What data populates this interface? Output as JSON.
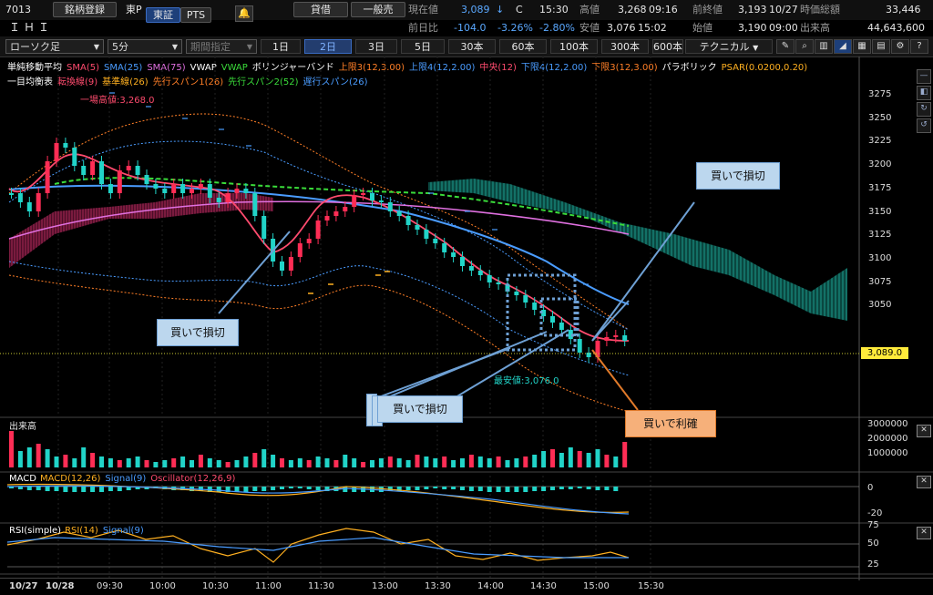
{
  "header": {
    "code": "7013",
    "watch_btn": "銘柄登録",
    "market": "東P",
    "tse_tab": "東証",
    "pts_tab": "PTS",
    "lending_btn": "貸借",
    "general_btn": "一般売",
    "name": "ＩＨＩ",
    "current_label": "現在値",
    "current_value": "3,089",
    "current_arrow": "↓",
    "c_flag": "C",
    "current_time": "15:30",
    "high_label": "高値",
    "high_value": "3,268",
    "high_time": "09:16",
    "prev_close_label": "前終値",
    "prev_close_value": "3,193",
    "prev_close_date": "10/27",
    "mcap_label": "時価総額",
    "mcap_value": "33,446",
    "change_label": "前日比",
    "change_value": "-104.0",
    "change_pct": "-3.26%",
    "change_pct2": "-2.80%",
    "low_label": "安値",
    "low_value": "3,076",
    "low_time": "15:02",
    "open_label": "始値",
    "open_value": "3,190",
    "open_time": "09:00",
    "volume_label": "出来高",
    "volume_value": "44,643,600"
  },
  "toolbar": {
    "chart_type": "ローソク足",
    "interval": "5分",
    "period_spec": "期間指定",
    "periods": [
      "1日",
      "2日",
      "3日",
      "5日",
      "30本",
      "60本",
      "100本",
      "300本",
      "600本"
    ],
    "active_period": "2日",
    "technical_btn": "テクニカル"
  },
  "legend": {
    "line1": [
      {
        "text": "単純移動平均",
        "color": "#ffffff"
      },
      {
        "text": "SMA(5)",
        "color": "#ff4b6e"
      },
      {
        "text": "SMA(25)",
        "color": "#4a9cff"
      },
      {
        "text": "SMA(75)",
        "color": "#e070e0"
      },
      {
        "text": "VWAP",
        "color": "#ffffff"
      },
      {
        "text": "VWAP",
        "color": "#3adc3a"
      },
      {
        "text": "ボリンジャーバンド",
        "color": "#ffffff"
      },
      {
        "text": "上限3(12,3.00)",
        "color": "#ff7f27"
      },
      {
        "text": "上限4(12,2.00)",
        "color": "#4a9cff"
      },
      {
        "text": "中央(12)",
        "color": "#ff4b6e"
      },
      {
        "text": "下限4(12,2.00)",
        "color": "#4a9cff"
      },
      {
        "text": "下限3(12,3.00)",
        "color": "#ff7f27"
      },
      {
        "text": "パラボリック",
        "color": "#ffffff"
      },
      {
        "text": "PSAR(0.0200,0.20)",
        "color": "#ffb020"
      }
    ],
    "line2": [
      {
        "text": "一目均衡表",
        "color": "#ffffff"
      },
      {
        "text": "転換線(9)",
        "color": "#ff4b6e"
      },
      {
        "text": "基準線(26)",
        "color": "#ffb020"
      },
      {
        "text": "先行スパン1(26)",
        "color": "#ff7f27"
      },
      {
        "text": "先行スパン2(52)",
        "color": "#3adc3a"
      },
      {
        "text": "遅行スパン(26)",
        "color": "#4a9cff"
      }
    ]
  },
  "price_axis": [
    "3275",
    "3250",
    "3225",
    "3200",
    "3175",
    "3150",
    "3125",
    "3100",
    "3075",
    "3050"
  ],
  "last_price_tag": "3,089.0",
  "annotations": {
    "high_marker": "一場高値:3,268.0",
    "low_marker": "最安値:3,076.0",
    "callout1": "買いで損切",
    "callout2": "買いで損切",
    "callout3": "買いで損切",
    "callout4": "買いで利確"
  },
  "volume_panel": {
    "title": "出来高",
    "axis": [
      "3000000",
      "2000000",
      "1000000"
    ]
  },
  "macd_panel": {
    "title": "MACD",
    "items": [
      {
        "text": "MACD(12,26)",
        "color": "#ffb020"
      },
      {
        "text": "Signal(9)",
        "color": "#4a9cff"
      },
      {
        "text": "Oscillator(12,26,9)",
        "color": "#ff4b6e"
      }
    ],
    "axis": [
      "0",
      "-20"
    ]
  },
  "rsi_panel": {
    "title": "RSI(simple)",
    "items": [
      {
        "text": "RSI(14)",
        "color": "#ffb020"
      },
      {
        "text": "Signal(9)",
        "color": "#4a9cff"
      }
    ],
    "axis": [
      "75",
      "50",
      "25"
    ]
  },
  "time_axis": [
    "10/27",
    "10/28",
    "09:30",
    "10:00",
    "10:30",
    "11:00",
    "11:30",
    "13:00",
    "13:30",
    "14:00",
    "14:30",
    "15:00",
    "15:30"
  ],
  "colors": {
    "up": "#ff2d55",
    "down": "#21d4c8",
    "cloud_bear": "#7a1540",
    "cloud_bull": "#0f6e62",
    "accent": "#3a6bc2"
  }
}
